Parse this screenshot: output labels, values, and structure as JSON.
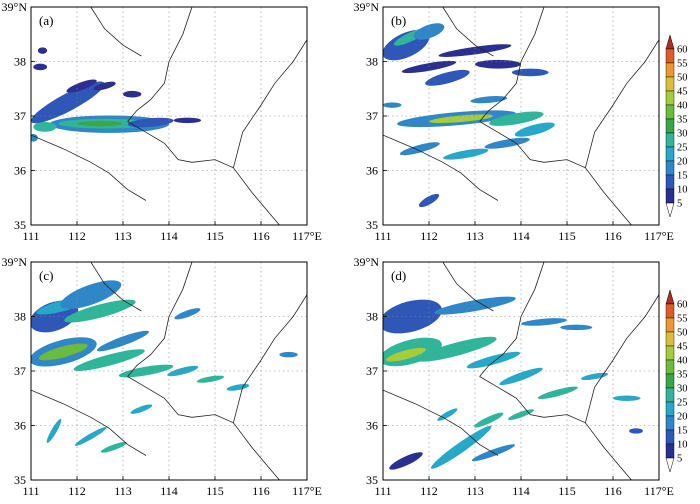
{
  "panels": [
    {
      "id": "a",
      "label": "(a)",
      "top_left_tick": "39°N",
      "right_end_tick": "117°E"
    },
    {
      "id": "b",
      "label": "(b)",
      "top_left_tick": "39°N",
      "right_end_tick": "117°E"
    },
    {
      "id": "c",
      "label": "(c)",
      "top_left_tick": "39°N",
      "right_end_tick": "117°E"
    },
    {
      "id": "d",
      "label": "(d)",
      "top_left_tick": "39°N",
      "right_end_tick": "117°E"
    }
  ],
  "x_ticks": [
    "111",
    "112",
    "113",
    "114",
    "115",
    "116"
  ],
  "y_ticks": [
    "38",
    "37",
    "36",
    "35"
  ],
  "colorbar": {
    "levels": [
      "5",
      "10",
      "15",
      "20",
      "25",
      "30",
      "35",
      "40",
      "45",
      "50",
      "55",
      "60"
    ],
    "colors": [
      "#ffffff",
      "#2b2f8f",
      "#2f57b8",
      "#2f87c8",
      "#28a8c8",
      "#2fb69a",
      "#3aa648",
      "#6cbb3c",
      "#a6cc3a",
      "#d8c035",
      "#e89a30",
      "#e05a2a",
      "#b32a22"
    ]
  },
  "map": {
    "lon_range": [
      111,
      117
    ],
    "lat_range": [
      35,
      39
    ],
    "grid": "dotted"
  }
}
